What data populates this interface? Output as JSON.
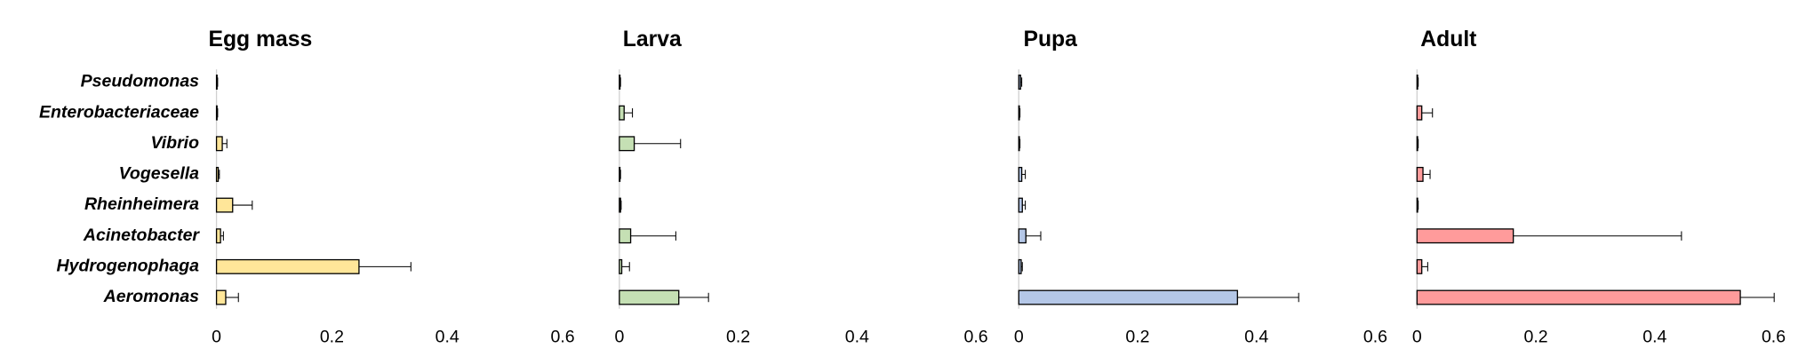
{
  "chart_data": [
    {
      "type": "bar",
      "title": "Egg mass",
      "color": "#ffe699",
      "categories": [
        "Pseudomonas",
        "Enterobacteriaceae",
        "Vibrio",
        "Vogesella",
        "Rheinheimera",
        "Acinetobacter",
        "Hydrogenophaga",
        "Aeromonas"
      ],
      "values": [
        0.001,
        0.001,
        0.01,
        0.003,
        0.028,
        0.007,
        0.247,
        0.016
      ],
      "errors": [
        0.001,
        0.001,
        0.008,
        0.002,
        0.034,
        0.005,
        0.09,
        0.022
      ],
      "xlim": [
        0,
        0.6
      ],
      "xticks": [
        0,
        0.2,
        0.4,
        0.6
      ]
    },
    {
      "type": "bar",
      "title": "Larva",
      "color": "#c5e0b4",
      "values": [
        0.001,
        0.008,
        0.025,
        0.001,
        0.002,
        0.019,
        0.004,
        0.1
      ],
      "errors": [
        0.001,
        0.014,
        0.078,
        0.001,
        0.001,
        0.076,
        0.013,
        0.05
      ],
      "xlim": [
        0,
        0.6
      ],
      "xticks": [
        0,
        0.2,
        0.4,
        0.6
      ]
    },
    {
      "type": "bar",
      "title": "Pupa",
      "color": "#b4c7e7",
      "values": [
        0.003,
        0.001,
        0.001,
        0.005,
        0.006,
        0.012,
        0.004,
        0.368
      ],
      "errors": [
        0.002,
        0.001,
        0.001,
        0.006,
        0.005,
        0.025,
        0.002,
        0.103
      ],
      "xlim": [
        0,
        0.6
      ],
      "xticks": [
        0,
        0.2,
        0.4,
        0.6
      ]
    },
    {
      "type": "bar",
      "title": "Adult",
      "color": "#ff9b9b",
      "values": [
        0.001,
        0.008,
        0.001,
        0.01,
        0.001,
        0.162,
        0.008,
        0.544
      ],
      "errors": [
        0.001,
        0.018,
        0.001,
        0.012,
        0.001,
        0.283,
        0.01,
        0.057
      ],
      "xlim": [
        0,
        0.6
      ],
      "xticks": [
        0,
        0.2,
        0.4,
        0.6
      ]
    }
  ]
}
